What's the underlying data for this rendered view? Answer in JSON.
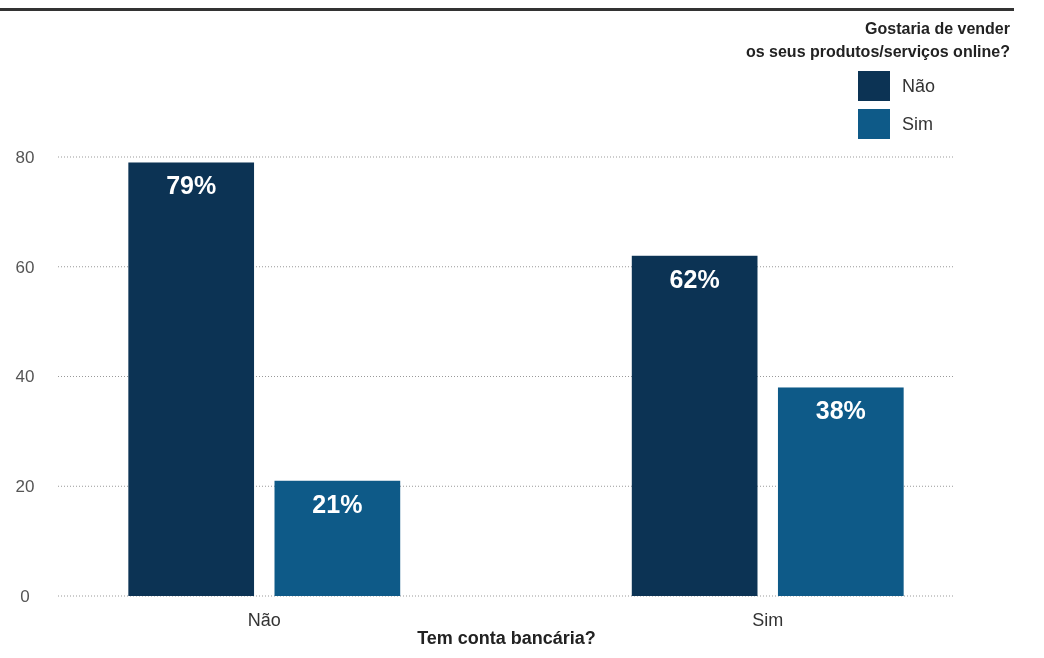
{
  "chart_data": {
    "type": "bar",
    "xlabel": "Tem conta bancária?",
    "legend_title": "Gostaria de vender os seus produtos/serviços online?",
    "categories": [
      "Não",
      "Sim"
    ],
    "series": [
      {
        "name": "Não",
        "color": "#0c3354",
        "values": [
          79,
          62
        ],
        "value_labels": [
          "79%",
          "62%"
        ]
      },
      {
        "name": "Sim",
        "color": "#0e5a88",
        "values": [
          21,
          38
        ],
        "value_labels": [
          "21%",
          "38%"
        ]
      }
    ],
    "ylim": [
      0,
      80
    ],
    "yticks": [
      0,
      20,
      40,
      60,
      80
    ],
    "grid": "y",
    "legend": "top right"
  }
}
